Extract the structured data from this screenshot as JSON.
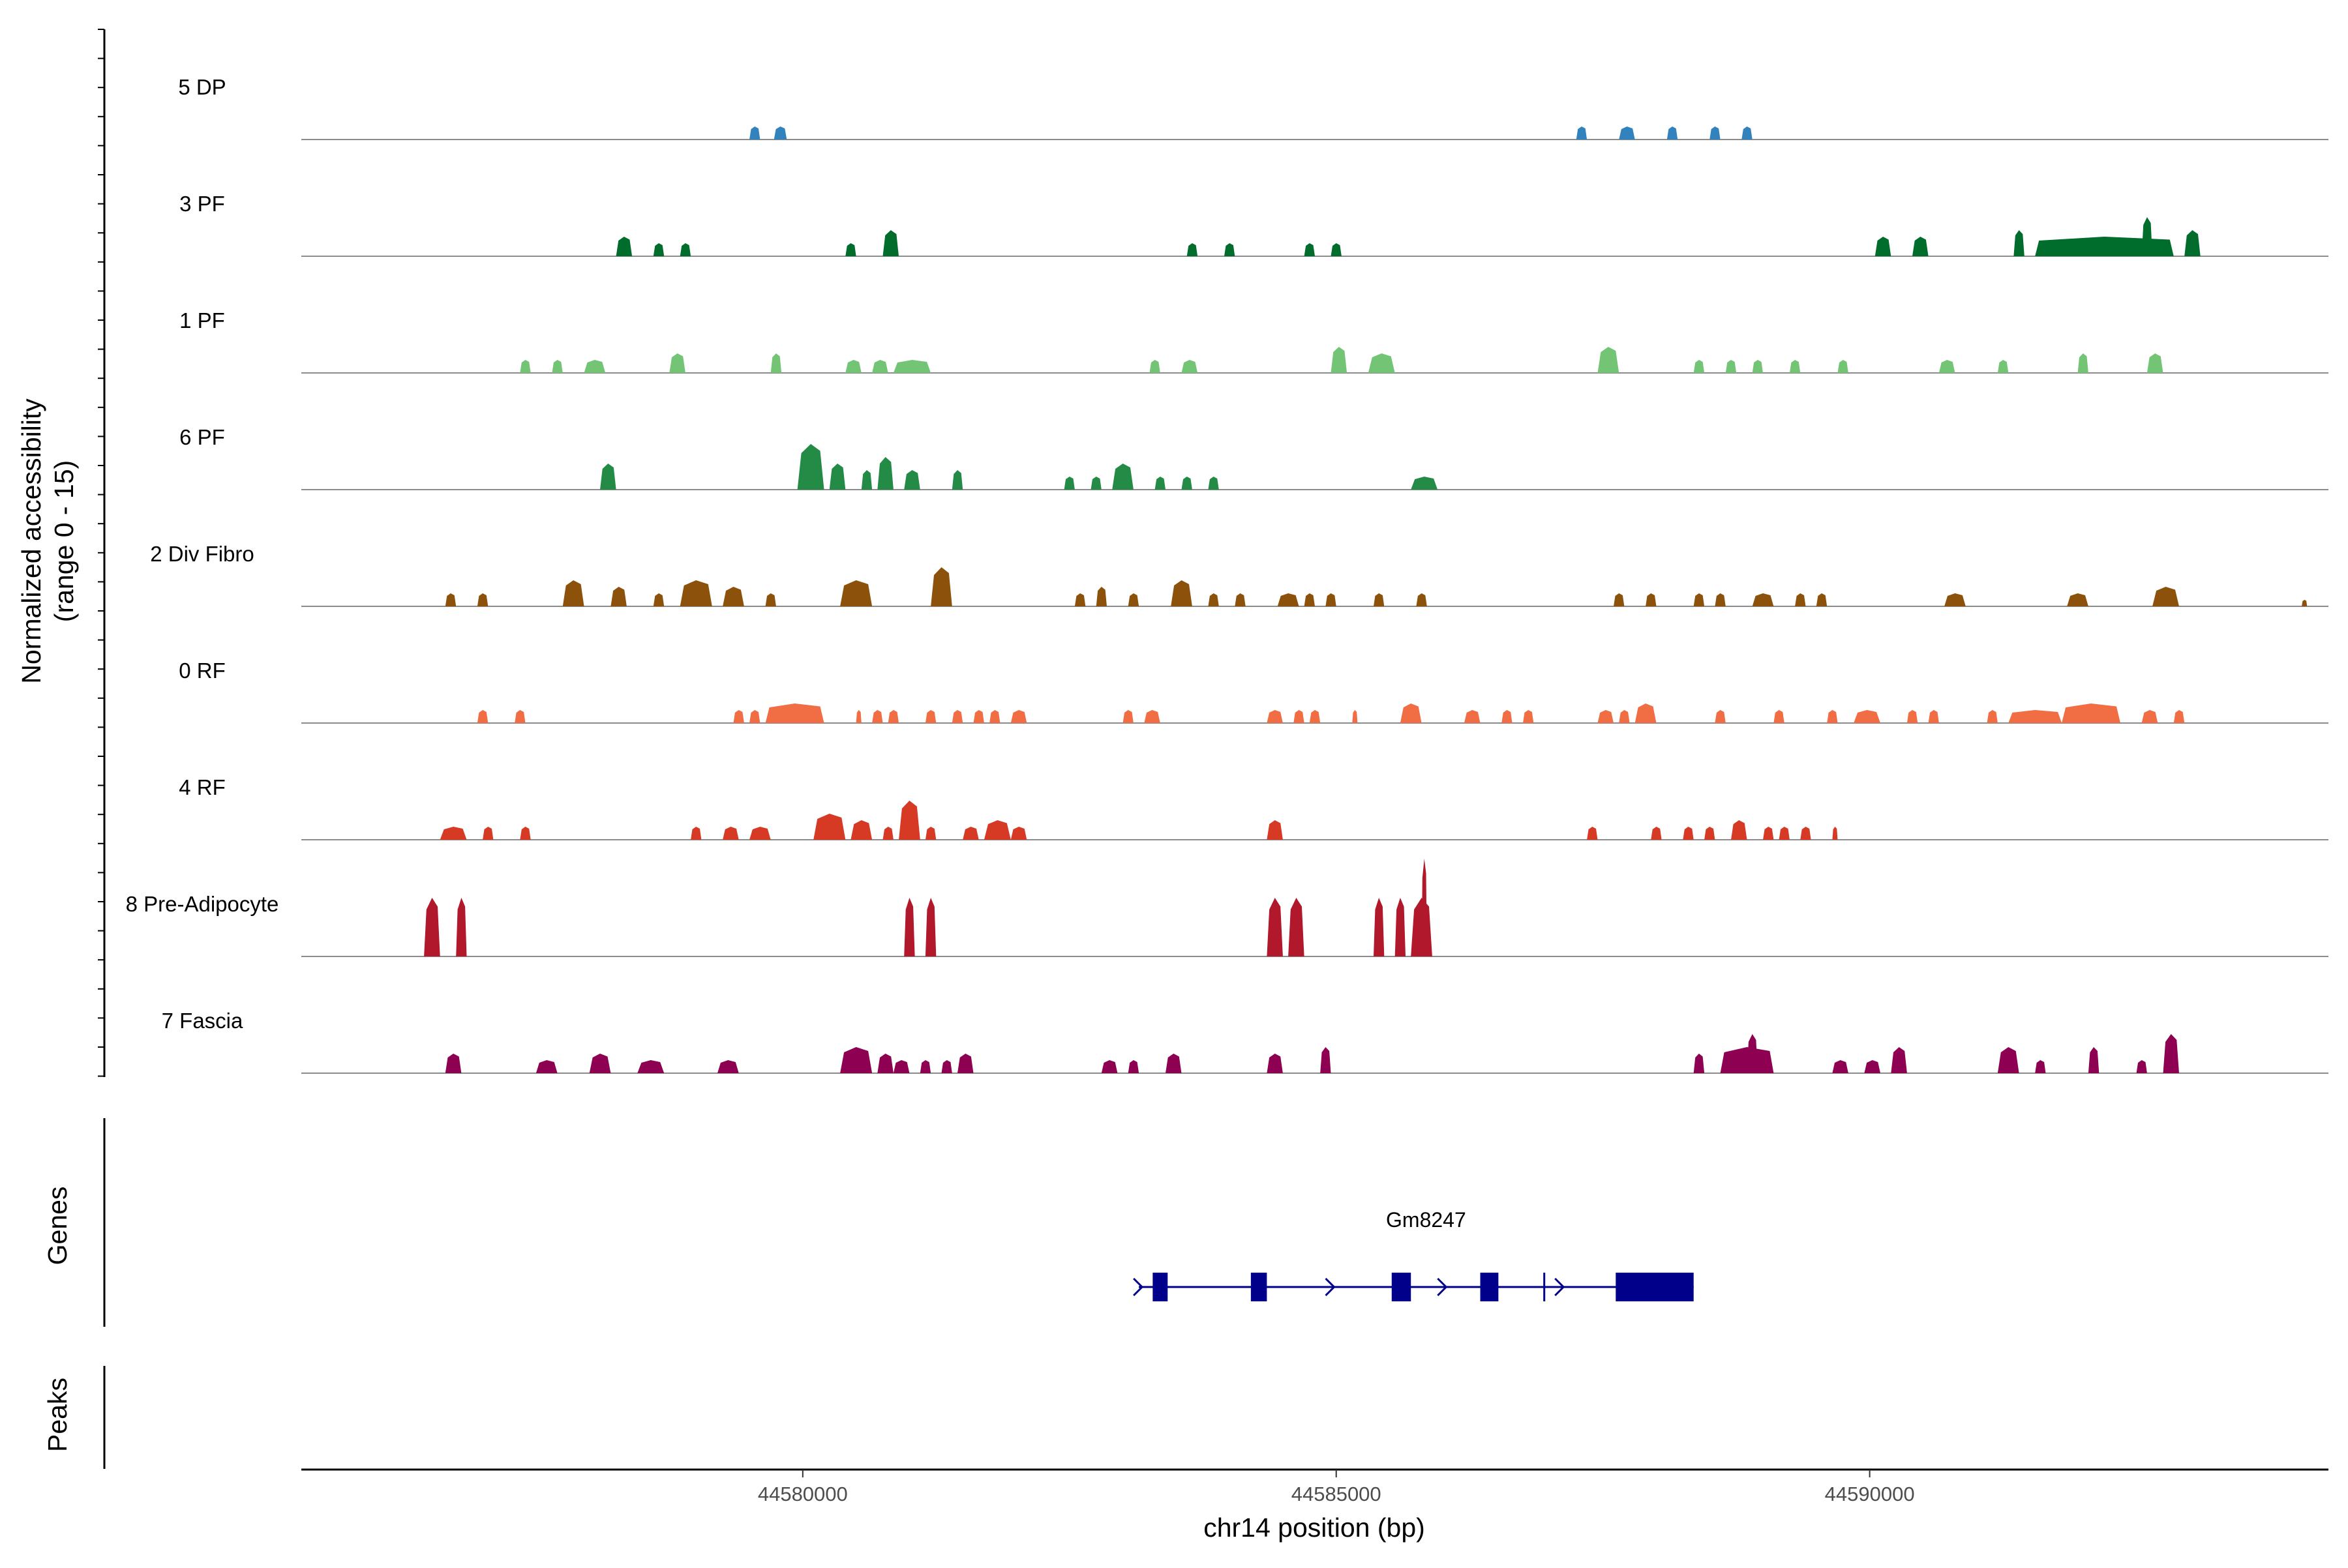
{
  "chart_data": {
    "type": "coverage",
    "region": "chr14",
    "xlabel": "chr14 position (bp)",
    "ylabel_line1": "Normalized accessibility",
    "ylabel_line2": "(range 0 - 15)",
    "ylim": [
      0,
      15
    ],
    "xlim": [
      44575300,
      44594300
    ],
    "x_ticks": [
      {
        "value": 44580000,
        "label": "44580000"
      },
      {
        "value": 44585000,
        "label": "44585000"
      },
      {
        "value": 44590000,
        "label": "44590000"
      }
    ],
    "panels": {
      "genes": "Genes",
      "peaks": "Peaks"
    },
    "tracks": [
      {
        "name": "5 DP",
        "color": "#3182bd",
        "peaks": [
          [
            44579500,
            44579600,
            2
          ],
          [
            44579730,
            44579850,
            2
          ],
          [
            44587250,
            44587350,
            2
          ],
          [
            44587650,
            44587800,
            2
          ],
          [
            44588100,
            44588200,
            2
          ],
          [
            44588500,
            44588600,
            2
          ],
          [
            44588800,
            44588900,
            2
          ]
        ]
      },
      {
        "name": "3 PF",
        "color": "#006d2c",
        "peaks": [
          [
            44578250,
            44578400,
            3
          ],
          [
            44578600,
            44578700,
            2
          ],
          [
            44578850,
            44578950,
            2
          ],
          [
            44580400,
            44580500,
            2
          ],
          [
            44580750,
            44580900,
            4
          ],
          [
            44583600,
            44583700,
            2
          ],
          [
            44583950,
            44584050,
            2
          ],
          [
            44584700,
            44584800,
            2
          ],
          [
            44584950,
            44585050,
            2
          ],
          [
            44590050,
            44590200,
            3
          ],
          [
            44590400,
            44590550,
            3
          ],
          [
            44591350,
            44591450,
            4
          ],
          [
            44591550,
            44592850,
            3
          ],
          [
            44592550,
            44592650,
            6
          ],
          [
            44592950,
            44593100,
            4
          ]
        ]
      },
      {
        "name": "1 PF",
        "color": "#74c476",
        "peaks": [
          [
            44577350,
            44577450,
            2
          ],
          [
            44577650,
            44577750,
            2
          ],
          [
            44577950,
            44578150,
            2
          ],
          [
            44578750,
            44578900,
            3
          ],
          [
            44579700,
            44579800,
            3
          ],
          [
            44580400,
            44580550,
            2
          ],
          [
            44580650,
            44580800,
            2
          ],
          [
            44580850,
            44581200,
            2
          ],
          [
            44583250,
            44583350,
            2
          ],
          [
            44583550,
            44583700,
            2
          ],
          [
            44584950,
            44585100,
            4
          ],
          [
            44585300,
            44585550,
            3
          ],
          [
            44587450,
            44587650,
            4
          ],
          [
            44588350,
            44588450,
            2
          ],
          [
            44588650,
            44588750,
            2
          ],
          [
            44588900,
            44589000,
            2
          ],
          [
            44589250,
            44589350,
            2
          ],
          [
            44589700,
            44589800,
            2
          ],
          [
            44590650,
            44590800,
            2
          ],
          [
            44591200,
            44591300,
            2
          ],
          [
            44591950,
            44592050,
            3
          ],
          [
            44592600,
            44592750,
            3
          ]
        ]
      },
      {
        "name": "6 PF",
        "color": "#238b45",
        "peaks": [
          [
            44578100,
            44578250,
            4
          ],
          [
            44579950,
            44580200,
            7
          ],
          [
            44580250,
            44580400,
            4
          ],
          [
            44580550,
            44580650,
            3
          ],
          [
            44580700,
            44580850,
            5
          ],
          [
            44580950,
            44581100,
            3
          ],
          [
            44581400,
            44581500,
            3
          ],
          [
            44582450,
            44582550,
            2
          ],
          [
            44582700,
            44582800,
            2
          ],
          [
            44582900,
            44583100,
            4
          ],
          [
            44583300,
            44583400,
            2
          ],
          [
            44583550,
            44583650,
            2
          ],
          [
            44583800,
            44583900,
            2
          ],
          [
            44585700,
            44585950,
            2
          ]
        ]
      },
      {
        "name": "2 Div Fibro",
        "color": "#8c510a",
        "peaks": [
          [
            44576650,
            44576750,
            2
          ],
          [
            44576950,
            44577050,
            2
          ],
          [
            44577750,
            44577950,
            4
          ],
          [
            44578200,
            44578350,
            3
          ],
          [
            44578600,
            44578700,
            2
          ],
          [
            44578850,
            44579150,
            4
          ],
          [
            44579250,
            44579450,
            3
          ],
          [
            44579650,
            44579750,
            2
          ],
          [
            44580350,
            44580650,
            4
          ],
          [
            44581200,
            44581400,
            6
          ],
          [
            44582550,
            44582650,
            2
          ],
          [
            44582750,
            44582850,
            3
          ],
          [
            44583050,
            44583150,
            2
          ],
          [
            44583450,
            44583650,
            4
          ],
          [
            44583800,
            44583900,
            2
          ],
          [
            44584050,
            44584150,
            2
          ],
          [
            44584450,
            44584650,
            2
          ],
          [
            44584700,
            44584800,
            2
          ],
          [
            44584900,
            44585000,
            2
          ],
          [
            44585350,
            44585450,
            2
          ],
          [
            44585750,
            44585850,
            2
          ],
          [
            44587600,
            44587700,
            2
          ],
          [
            44587900,
            44588000,
            2
          ],
          [
            44588350,
            44588450,
            2
          ],
          [
            44588550,
            44588650,
            2
          ],
          [
            44588900,
            44589100,
            2
          ],
          [
            44589300,
            44589400,
            2
          ],
          [
            44589500,
            44589600,
            2
          ],
          [
            44590700,
            44590900,
            2
          ],
          [
            44591850,
            44592050,
            2
          ],
          [
            44592650,
            44592900,
            3
          ],
          [
            44594050,
            44594100,
            1
          ]
        ]
      },
      {
        "name": "0 RF",
        "color": "#f16d43",
        "peaks": [
          [
            44576950,
            44577050,
            2
          ],
          [
            44577300,
            44577400,
            2
          ],
          [
            44579350,
            44579450,
            2
          ],
          [
            44579500,
            44579600,
            2
          ],
          [
            44579650,
            44580200,
            3
          ],
          [
            44580500,
            44580550,
            2
          ],
          [
            44580650,
            44580750,
            2
          ],
          [
            44580800,
            44580900,
            2
          ],
          [
            44581150,
            44581250,
            2
          ],
          [
            44581400,
            44581500,
            2
          ],
          [
            44581600,
            44581700,
            2
          ],
          [
            44581750,
            44581850,
            2
          ],
          [
            44581950,
            44582100,
            2
          ],
          [
            44583000,
            44583100,
            2
          ],
          [
            44583200,
            44583350,
            2
          ],
          [
            44584350,
            44584500,
            2
          ],
          [
            44584600,
            44584700,
            2
          ],
          [
            44584750,
            44584850,
            2
          ],
          [
            44585150,
            44585200,
            2
          ],
          [
            44585600,
            44585800,
            3
          ],
          [
            44586200,
            44586350,
            2
          ],
          [
            44586550,
            44586650,
            2
          ],
          [
            44586750,
            44586850,
            2
          ],
          [
            44587450,
            44587600,
            2
          ],
          [
            44587650,
            44587750,
            2
          ],
          [
            44587800,
            44588000,
            3
          ],
          [
            44588550,
            44588650,
            2
          ],
          [
            44589100,
            44589200,
            2
          ],
          [
            44589600,
            44589700,
            2
          ],
          [
            44589850,
            44590100,
            2
          ],
          [
            44590350,
            44590450,
            2
          ],
          [
            44590550,
            44590650,
            2
          ],
          [
            44591100,
            44591200,
            2
          ],
          [
            44591300,
            44591800,
            2
          ],
          [
            44591800,
            44592350,
            3
          ],
          [
            44592550,
            44592700,
            2
          ],
          [
            44592850,
            44592950,
            2
          ]
        ]
      },
      {
        "name": "4 RF",
        "color": "#d63a24",
        "peaks": [
          [
            44576600,
            44576850,
            2
          ],
          [
            44577000,
            44577100,
            2
          ],
          [
            44577350,
            44577450,
            2
          ],
          [
            44578950,
            44579050,
            2
          ],
          [
            44579250,
            44579400,
            2
          ],
          [
            44579500,
            44579700,
            2
          ],
          [
            44580100,
            44580400,
            4
          ],
          [
            44580450,
            44580650,
            3
          ],
          [
            44580750,
            44580850,
            2
          ],
          [
            44580900,
            44581100,
            6
          ],
          [
            44581150,
            44581250,
            2
          ],
          [
            44581500,
            44581650,
            2
          ],
          [
            44581700,
            44581950,
            3
          ],
          [
            44581950,
            44582100,
            2
          ],
          [
            44584350,
            44584500,
            3
          ],
          [
            44587350,
            44587450,
            2
          ],
          [
            44587950,
            44588050,
            2
          ],
          [
            44588250,
            44588350,
            2
          ],
          [
            44588450,
            44588550,
            2
          ],
          [
            44588700,
            44588850,
            3
          ],
          [
            44589000,
            44589100,
            2
          ],
          [
            44589150,
            44589250,
            2
          ],
          [
            44589350,
            44589450,
            2
          ],
          [
            44589650,
            44589700,
            2
          ]
        ]
      },
      {
        "name": "8 Pre-Adipocyte",
        "color": "#b2182b",
        "peaks": [
          [
            44576450,
            44576600,
            9
          ],
          [
            44576750,
            44576850,
            9
          ],
          [
            44580950,
            44581050,
            9
          ],
          [
            44581150,
            44581250,
            9
          ],
          [
            44584350,
            44584500,
            9
          ],
          [
            44584550,
            44584700,
            9
          ],
          [
            44585350,
            44585450,
            9
          ],
          [
            44585550,
            44585650,
            9
          ],
          [
            44585700,
            44585900,
            9
          ],
          [
            44585800,
            44585850,
            15
          ]
        ]
      },
      {
        "name": "7 Fascia",
        "color": "#8e0152",
        "peaks": [
          [
            44576650,
            44576800,
            3
          ],
          [
            44577500,
            44577700,
            2
          ],
          [
            44578000,
            44578200,
            3
          ],
          [
            44578450,
            44578700,
            2
          ],
          [
            44579200,
            44579400,
            2
          ],
          [
            44580350,
            44580650,
            4
          ],
          [
            44580700,
            44580850,
            3
          ],
          [
            44580850,
            44581000,
            2
          ],
          [
            44581100,
            44581200,
            2
          ],
          [
            44581300,
            44581400,
            2
          ],
          [
            44581450,
            44581600,
            3
          ],
          [
            44582800,
            44582950,
            2
          ],
          [
            44583050,
            44583150,
            2
          ],
          [
            44583400,
            44583550,
            3
          ],
          [
            44584350,
            44584500,
            3
          ],
          [
            44584850,
            44584950,
            4
          ],
          [
            44588350,
            44588450,
            3
          ],
          [
            44588600,
            44589100,
            4
          ],
          [
            44588850,
            44588950,
            6
          ],
          [
            44589650,
            44589800,
            2
          ],
          [
            44589950,
            44590100,
            2
          ],
          [
            44590200,
            44590350,
            4
          ],
          [
            44591200,
            44591400,
            4
          ],
          [
            44591550,
            44591650,
            2
          ],
          [
            44592050,
            44592150,
            4
          ],
          [
            44592500,
            44592600,
            2
          ],
          [
            44592750,
            44592900,
            6
          ]
        ]
      }
    ],
    "genes": [
      {
        "name": "Gm8247",
        "strand": "+",
        "start": 44583150,
        "end": 44588350,
        "exons": [
          [
            44583280,
            44583420
          ],
          [
            44584200,
            44584350
          ],
          [
            44585520,
            44585700
          ],
          [
            44586350,
            44586520
          ],
          [
            44587620,
            44588350
          ]
        ],
        "arrows": [
          44583150,
          44584950,
          44586000,
          44587100
        ],
        "tss": 44586950
      }
    ]
  }
}
